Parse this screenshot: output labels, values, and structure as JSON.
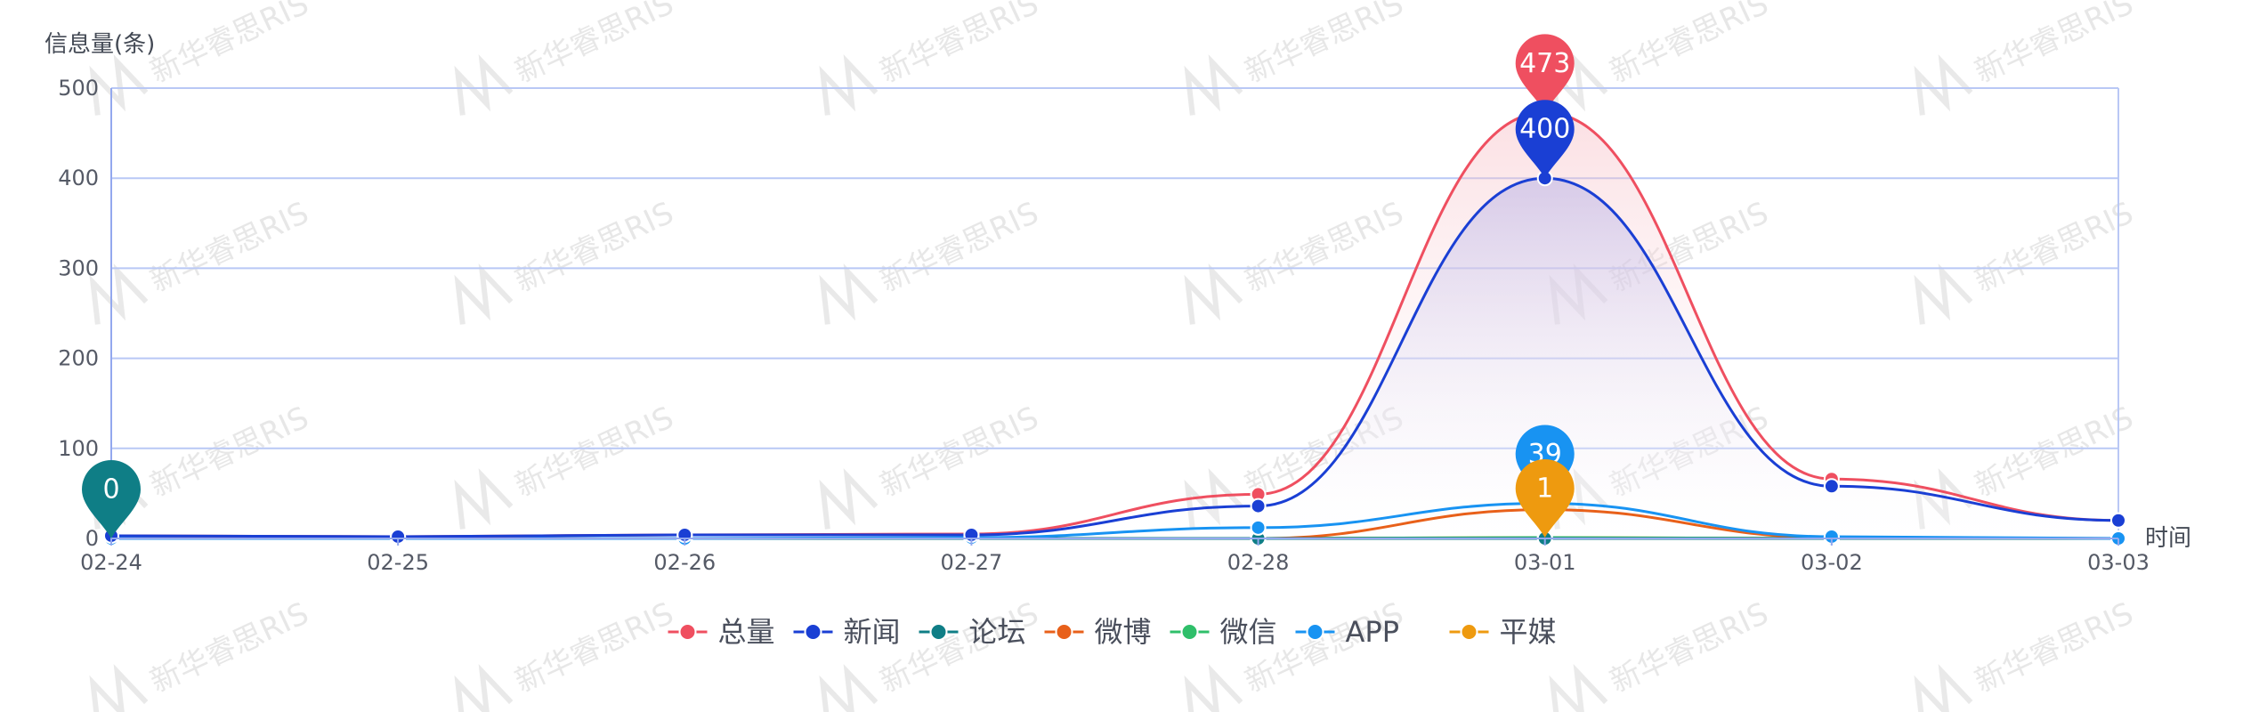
{
  "chart_data": {
    "type": "line",
    "smooth": true,
    "ylabel": "信息量(条)",
    "xlabel": "时间",
    "categories": [
      "02-24",
      "02-25",
      "02-26",
      "02-27",
      "02-28",
      "03-01",
      "03-02",
      "03-03"
    ],
    "ylim": [
      0,
      500
    ],
    "yticks": [
      0,
      100,
      200,
      300,
      400,
      500
    ],
    "grid": true,
    "legend_position": "bottom",
    "series": [
      {
        "name": "总量",
        "color": "#ef4f60",
        "values": [
          3,
          2,
          4,
          5,
          49,
          473,
          66,
          20
        ],
        "area": true
      },
      {
        "name": "新闻",
        "color": "#1a3fd4",
        "values": [
          3,
          2,
          4,
          4,
          36,
          400,
          58,
          20
        ],
        "area": true
      },
      {
        "name": "论坛",
        "color": "#0f7e86",
        "values": [
          0,
          0,
          0,
          0,
          0,
          0,
          0,
          0
        ]
      },
      {
        "name": "微博",
        "color": "#e8601a",
        "values": [
          0,
          0,
          0,
          0,
          0,
          32,
          1,
          0
        ]
      },
      {
        "name": "微信",
        "color": "#2fbf6a",
        "values": [
          0,
          0,
          0,
          0,
          0,
          1,
          0,
          0
        ]
      },
      {
        "name": "APP",
        "color": "#1893f2",
        "values": [
          0,
          0,
          0,
          1,
          12,
          39,
          2,
          0
        ]
      },
      {
        "name": "平媒",
        "color": "#ee9a0f",
        "values": [
          0,
          0,
          0,
          0,
          0,
          1,
          0,
          0
        ]
      }
    ],
    "markers": [
      {
        "series": "总量",
        "category": "03-01",
        "label": "473"
      },
      {
        "series": "新闻",
        "category": "03-01",
        "label": "400"
      },
      {
        "series": "APP",
        "category": "03-01",
        "label": "39"
      },
      {
        "series": "平媒",
        "category": "03-01",
        "label": "1"
      },
      {
        "series": "论坛",
        "category": "02-24",
        "label": "0"
      }
    ]
  },
  "watermark": "新华睿思RIS",
  "colors": {
    "grid": "#b9c8f5",
    "axis": "#93a8ee",
    "text": "#555a66"
  }
}
